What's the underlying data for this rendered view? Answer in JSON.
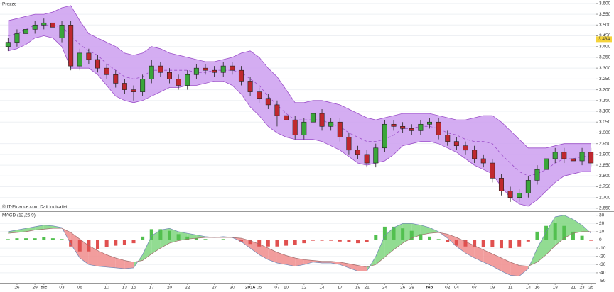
{
  "chart_data": [
    {
      "type": "candlestick",
      "title": "Prezzo",
      "note": "© IT-Finance.com  Dati indicativi",
      "categories": [
        null,
        "26",
        null,
        "29",
        "dic",
        null,
        "03",
        null,
        "06",
        null,
        null,
        "10",
        null,
        "13",
        "15",
        null,
        "17",
        null,
        "20",
        null,
        "22",
        null,
        null,
        "27",
        null,
        "30",
        null,
        "2016",
        "05",
        null,
        "07",
        "10",
        null,
        "12",
        null,
        "14",
        null,
        "17",
        null,
        "19",
        "21",
        null,
        "24",
        null,
        "26",
        "28",
        null,
        "feb",
        null,
        "02",
        "04",
        null,
        "07",
        null,
        "09",
        null,
        "11",
        null,
        "14",
        "16",
        null,
        "18",
        null,
        "21",
        "23",
        "25"
      ],
      "open": [
        3.4,
        3.42,
        3.46,
        3.48,
        3.5,
        3.51,
        3.44,
        3.5,
        3.31,
        3.37,
        3.34,
        3.3,
        3.27,
        3.23,
        3.2,
        3.19,
        3.25,
        3.31,
        3.28,
        3.25,
        3.22,
        3.27,
        3.3,
        3.29,
        3.28,
        3.31,
        3.29,
        3.24,
        3.19,
        3.16,
        3.13,
        3.08,
        3.06,
        2.99,
        3.05,
        3.09,
        3.03,
        3.05,
        2.98,
        2.92,
        2.9,
        2.86,
        2.93,
        3.04,
        3.03,
        3.02,
        3.01,
        3.04,
        3.05,
        2.99,
        2.96,
        2.94,
        2.92,
        2.88,
        2.86,
        2.79,
        2.73,
        2.7,
        2.72,
        2.78,
        2.83,
        2.88,
        2.91,
        2.88,
        2.87,
        2.91
      ],
      "high": [
        3.44,
        3.48,
        3.5,
        3.52,
        3.53,
        3.53,
        3.52,
        3.52,
        3.39,
        3.39,
        3.36,
        3.32,
        3.29,
        3.25,
        3.22,
        3.27,
        3.34,
        3.33,
        3.3,
        3.27,
        3.29,
        3.32,
        3.32,
        3.31,
        3.33,
        3.33,
        3.31,
        3.26,
        3.21,
        3.18,
        3.15,
        3.1,
        3.08,
        3.07,
        3.11,
        3.11,
        3.07,
        3.07,
        3.0,
        2.94,
        2.92,
        2.95,
        3.06,
        3.06,
        3.05,
        3.04,
        3.06,
        3.07,
        3.07,
        3.01,
        2.98,
        2.96,
        2.94,
        2.9,
        2.88,
        2.81,
        2.75,
        2.74,
        2.8,
        2.85,
        2.9,
        2.93,
        2.93,
        2.9,
        2.93,
        2.93
      ],
      "low": [
        3.38,
        3.4,
        3.44,
        3.46,
        3.48,
        3.47,
        3.42,
        3.29,
        3.29,
        3.32,
        3.28,
        3.25,
        3.21,
        3.18,
        3.15,
        3.17,
        3.23,
        3.26,
        3.23,
        3.2,
        3.2,
        3.25,
        3.27,
        3.26,
        3.26,
        3.27,
        3.22,
        3.17,
        3.14,
        3.11,
        3.03,
        3.04,
        2.97,
        2.97,
        3.03,
        3.01,
        3.01,
        2.96,
        2.9,
        2.88,
        2.84,
        2.84,
        2.91,
        3.01,
        3.0,
        2.99,
        2.99,
        3.02,
        2.97,
        2.94,
        2.92,
        2.9,
        2.86,
        2.84,
        2.77,
        2.71,
        2.68,
        2.68,
        2.7,
        2.76,
        2.81,
        2.86,
        2.86,
        2.85,
        2.85,
        2.84
      ],
      "close": [
        3.42,
        3.46,
        3.48,
        3.5,
        3.51,
        3.49,
        3.5,
        3.31,
        3.37,
        3.34,
        3.3,
        3.27,
        3.23,
        3.2,
        3.19,
        3.25,
        3.31,
        3.28,
        3.25,
        3.22,
        3.27,
        3.3,
        3.29,
        3.28,
        3.31,
        3.29,
        3.24,
        3.19,
        3.16,
        3.13,
        3.08,
        3.06,
        2.99,
        3.05,
        3.09,
        3.03,
        3.05,
        2.98,
        2.92,
        2.9,
        2.86,
        2.93,
        3.04,
        3.03,
        3.02,
        3.01,
        3.04,
        3.05,
        2.99,
        2.96,
        2.94,
        2.92,
        2.88,
        2.86,
        2.79,
        2.73,
        2.7,
        2.72,
        2.78,
        2.83,
        2.88,
        2.91,
        2.88,
        2.87,
        2.91,
        2.86
      ],
      "up_color": "#3aa63a",
      "down_color": "#c0282e",
      "bands": {
        "color": "#cc9ff0",
        "line_color": "#9b4fc9",
        "upper": [
          3.52,
          3.53,
          3.54,
          3.55,
          3.55,
          3.56,
          3.58,
          3.59,
          3.52,
          3.46,
          3.44,
          3.42,
          3.4,
          3.37,
          3.36,
          3.37,
          3.4,
          3.39,
          3.37,
          3.36,
          3.35,
          3.34,
          3.33,
          3.33,
          3.34,
          3.35,
          3.37,
          3.38,
          3.35,
          3.3,
          3.26,
          3.2,
          3.14,
          3.14,
          3.15,
          3.15,
          3.14,
          3.13,
          3.11,
          3.09,
          3.07,
          3.06,
          3.07,
          3.08,
          3.09,
          3.09,
          3.09,
          3.09,
          3.08,
          3.07,
          3.06,
          3.06,
          3.07,
          3.08,
          3.08,
          3.05,
          3.01,
          2.97,
          2.93,
          2.93,
          2.93,
          2.94,
          2.95,
          2.95,
          2.95,
          2.95
        ],
        "middle": [
          3.45,
          3.46,
          3.48,
          3.5,
          3.5,
          3.5,
          3.49,
          3.45,
          3.41,
          3.38,
          3.36,
          3.32,
          3.29,
          3.26,
          3.25,
          3.26,
          3.29,
          3.29,
          3.29,
          3.29,
          3.29,
          3.28,
          3.28,
          3.29,
          3.29,
          3.29,
          3.28,
          3.25,
          3.22,
          3.17,
          3.13,
          3.09,
          3.06,
          3.06,
          3.06,
          3.06,
          3.04,
          3.03,
          3.0,
          2.98,
          2.96,
          2.96,
          2.97,
          2.99,
          3.02,
          3.02,
          3.03,
          3.03,
          3.02,
          3.0,
          2.99,
          2.97,
          2.96,
          2.96,
          2.95,
          2.9,
          2.86,
          2.82,
          2.8,
          2.81,
          2.83,
          2.86,
          2.88,
          2.88,
          2.89,
          2.89
        ],
        "lower": [
          3.38,
          3.39,
          3.41,
          3.44,
          3.45,
          3.44,
          3.4,
          3.3,
          3.3,
          3.3,
          3.27,
          3.22,
          3.17,
          3.15,
          3.14,
          3.15,
          3.17,
          3.19,
          3.21,
          3.21,
          3.22,
          3.22,
          3.23,
          3.24,
          3.24,
          3.22,
          3.18,
          3.12,
          3.08,
          3.03,
          3.0,
          2.98,
          2.97,
          2.97,
          2.97,
          2.96,
          2.94,
          2.92,
          2.89,
          2.86,
          2.85,
          2.86,
          2.87,
          2.9,
          2.94,
          2.95,
          2.96,
          2.96,
          2.95,
          2.93,
          2.91,
          2.88,
          2.85,
          2.83,
          2.81,
          2.75,
          2.7,
          2.67,
          2.66,
          2.69,
          2.73,
          2.77,
          2.8,
          2.81,
          2.82,
          2.82
        ]
      },
      "last_price": 3.434,
      "ylim": [
        2.64,
        3.616
      ],
      "yticks": [
        {
          "value": 3.6,
          "label": "3.600"
        },
        {
          "value": 3.55,
          "label": "3.550"
        },
        {
          "value": 3.5,
          "label": "3.500"
        },
        {
          "value": 3.45,
          "label": "3.450"
        },
        {
          "value": 3.4,
          "label": "3.400"
        },
        {
          "value": 3.35,
          "label": "3.350"
        },
        {
          "value": 3.3,
          "label": "3.300"
        },
        {
          "value": 3.25,
          "label": "3.250"
        },
        {
          "value": 3.2,
          "label": "3.200"
        },
        {
          "value": 3.15,
          "label": "3.150"
        },
        {
          "value": 3.1,
          "label": "3.100"
        },
        {
          "value": 3.05,
          "label": "3.050"
        },
        {
          "value": 3.0,
          "label": "3.000"
        },
        {
          "value": 2.95,
          "label": "2.950"
        },
        {
          "value": 2.9,
          "label": "2.900"
        },
        {
          "value": 2.85,
          "label": "2.850"
        },
        {
          "value": 2.8,
          "label": "2.800"
        },
        {
          "value": 2.75,
          "label": "2.750"
        },
        {
          "value": 2.7,
          "label": "2.700"
        },
        {
          "value": 2.65,
          "label": "2.650"
        }
      ],
      "grid": true
    },
    {
      "type": "macd",
      "title": "MACD (12,26,9)",
      "macd": [
        10,
        12,
        14,
        16,
        18,
        17,
        15,
        -5,
        -22,
        -30,
        -32,
        -33,
        -34,
        -35,
        -34,
        -18,
        5,
        12,
        14,
        10,
        8,
        6,
        4,
        3,
        4,
        3,
        -2,
        -10,
        -18,
        -24,
        -28,
        -30,
        -32,
        -30,
        -27,
        -28,
        -28,
        -30,
        -34,
        -38,
        -38,
        -20,
        5,
        15,
        20,
        20,
        18,
        15,
        10,
        2,
        -8,
        -16,
        -22,
        -27,
        -32,
        -38,
        -43,
        -44,
        -35,
        -10,
        10,
        28,
        30,
        25,
        18,
        8
      ],
      "signal": [
        8,
        9,
        10,
        12,
        13,
        14,
        14,
        9,
        1,
        -7,
        -13,
        -18,
        -22,
        -25,
        -27,
        -25,
        -17,
        -10,
        -4,
        -1,
        1,
        2,
        3,
        3,
        3,
        3,
        2,
        -1,
        -5,
        -10,
        -15,
        -19,
        -22,
        -24,
        -25,
        -26,
        -26,
        -27,
        -29,
        -31,
        -33,
        -30,
        -21,
        -12,
        -4,
        2,
        6,
        8,
        9,
        7,
        3,
        -2,
        -7,
        -12,
        -17,
        -22,
        -27,
        -31,
        -32,
        -27,
        -18,
        -7,
        2,
        8,
        10,
        10
      ],
      "histogram": [
        1,
        2,
        2,
        2,
        3,
        2,
        1,
        -8,
        -14,
        -14,
        -11,
        -9,
        -7,
        -6,
        -4,
        4,
        13,
        13,
        11,
        7,
        4,
        2,
        1,
        0,
        1,
        0,
        -2,
        -5,
        -8,
        -8,
        -8,
        -7,
        -6,
        -4,
        -1,
        -1,
        -1,
        -2,
        -3,
        -4,
        -3,
        6,
        16,
        16,
        14,
        11,
        7,
        4,
        1,
        -3,
        -7,
        -8,
        -9,
        -9,
        -9,
        -10,
        -10,
        -8,
        -2,
        10,
        17,
        21,
        17,
        10,
        5,
        -1
      ],
      "up_color": "#7fd67f",
      "down_color": "#f08c8c",
      "line_color": "#6f87b5",
      "signal_color": "#a06b6b",
      "ylim": [
        -53,
        34
      ],
      "yticks": [
        30,
        20,
        10,
        0,
        -10,
        -20,
        -30,
        -40,
        -50
      ],
      "grid": true
    }
  ]
}
